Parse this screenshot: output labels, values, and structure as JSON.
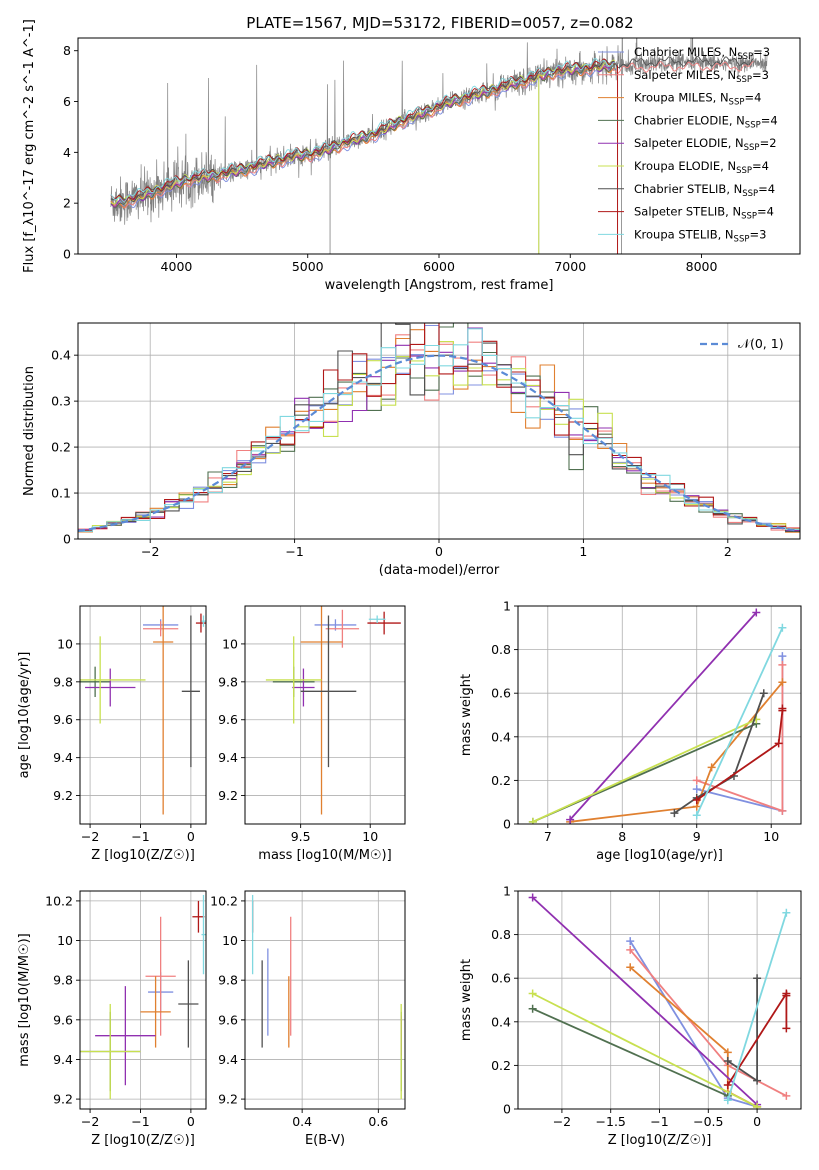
{
  "title": "PLATE=1567, MJD=53172, FIBERID=0057, z=0.082",
  "colors": {
    "chabrier_miles": "#8090e0",
    "salpeter_miles": "#f08080",
    "kroupa_miles": "#e08030",
    "chabrier_elodie": "#507050",
    "salpeter_elodie": "#9030b0",
    "kroupa_elodie": "#c8e050",
    "chabrier_stelib": "#505050",
    "salpeter_stelib": "#b01818",
    "kroupa_stelib": "#80d8e0",
    "data": "#808080",
    "normal": "#5b8bd6"
  },
  "chart_data": [
    {
      "id": "spectrum",
      "type": "line",
      "xlabel": "wavelength [Angstrom, rest frame]",
      "ylabel": "Flux [f_λ10^-17 erg cm^-2 s^-1 A^-1]",
      "xlim": [
        3250,
        8750
      ],
      "ylim": [
        0,
        8.5
      ],
      "xticks": [
        4000,
        5000,
        6000,
        7000,
        8000
      ],
      "yticks": [
        0,
        2,
        4,
        6,
        8
      ],
      "legend_position": "top-right",
      "legend": [
        {
          "label": "Chabrier MILES, N_SSP=3",
          "base": "Chabrier MILES, N",
          "sub": "SSP",
          "suffix": "=3",
          "color_key": "chabrier_miles"
        },
        {
          "label": "Salpeter MILES, N_SSP=3",
          "base": "Salpeter MILES, N",
          "sub": "SSP",
          "suffix": "=3",
          "color_key": "salpeter_miles"
        },
        {
          "label": "Kroupa MILES, N_SSP=4",
          "base": "Kroupa MILES, N",
          "sub": "SSP",
          "suffix": "=4",
          "color_key": "kroupa_miles"
        },
        {
          "label": "Chabrier ELODIE, N_SSP=4",
          "base": "Chabrier ELODIE, N",
          "sub": "SSP",
          "suffix": "=4",
          "color_key": "chabrier_elodie"
        },
        {
          "label": "Salpeter ELODIE, N_SSP=2",
          "base": "Salpeter ELODIE, N",
          "sub": "SSP",
          "suffix": "=2",
          "color_key": "salpeter_elodie"
        },
        {
          "label": "Kroupa ELODIE, N_SSP=4",
          "base": "Kroupa ELODIE, N",
          "sub": "SSP",
          "suffix": "=4",
          "color_key": "kroupa_elodie"
        },
        {
          "label": "Chabrier STELIB, N_SSP=4",
          "base": "Chabrier STELIB, N",
          "sub": "SSP",
          "suffix": "=4",
          "color_key": "chabrier_stelib"
        },
        {
          "label": "Salpeter STELIB, N_SSP=4",
          "base": "Salpeter STELIB, N",
          "sub": "SSP",
          "suffix": "=4",
          "color_key": "salpeter_stelib"
        },
        {
          "label": "Kroupa STELIB, N_SSP=3",
          "base": "Kroupa STELIB, N",
          "sub": "SSP",
          "suffix": "=3",
          "color_key": "kroupa_stelib"
        }
      ],
      "continuum": {
        "x": [
          3500,
          3700,
          3900,
          4100,
          4300,
          4500,
          4700,
          4900,
          5100,
          5300,
          5500,
          5700,
          5900,
          6100,
          6300,
          6500,
          6700,
          6900,
          7100,
          7300,
          7500,
          7700,
          7900,
          8100,
          8300,
          8500
        ],
        "y": [
          2.0,
          2.2,
          2.6,
          2.95,
          3.1,
          3.3,
          3.6,
          3.85,
          4.0,
          4.4,
          4.7,
          5.2,
          5.6,
          6.0,
          6.3,
          6.6,
          6.9,
          7.2,
          7.3,
          7.4,
          7.45,
          7.5,
          7.5,
          7.5,
          7.5,
          7.5
        ]
      }
    },
    {
      "id": "residuals",
      "type": "histogram",
      "xlabel": "(data-model)/error",
      "ylabel": "Normed distribution",
      "xlim": [
        -2.5,
        2.5
      ],
      "ylim": [
        0,
        0.47
      ],
      "xticks": [
        -2,
        -1,
        0,
        1,
        2
      ],
      "yticks": [
        0.0,
        0.1,
        0.2,
        0.3,
        0.4
      ],
      "grid": true,
      "legend_position": "top-right",
      "normal_label": "𝒩(0, 1)",
      "bin_width": 0.1
    },
    {
      "id": "age_vs_Z",
      "type": "errorbar",
      "xlabel": "Z [log10(Z/Z☉)]",
      "ylabel": "age [log10(age/yr)]",
      "xlim": [
        -2.2,
        0.3
      ],
      "ylim": [
        9.05,
        10.2
      ],
      "xticks": [
        -2,
        -1,
        0
      ],
      "yticks": [
        9.2,
        9.4,
        9.6,
        9.8,
        10.0
      ],
      "grid": true,
      "points": [
        {
          "series": "chabrier_miles",
          "x": -0.6,
          "xerr": 0.35,
          "y": 10.1,
          "yerr": 0.03
        },
        {
          "series": "salpeter_miles",
          "x": -0.6,
          "xerr": 0.35,
          "y": 10.08,
          "yerr": 0.04
        },
        {
          "series": "kroupa_miles",
          "x": -0.55,
          "xerr": 0.2,
          "y": 10.01,
          "yerr": 0.91
        },
        {
          "series": "chabrier_elodie",
          "x": -1.9,
          "xerr": 0.3,
          "y": 9.8,
          "yerr": 0.08
        },
        {
          "series": "salpeter_elodie",
          "x": -1.6,
          "xerr": 0.5,
          "y": 9.77,
          "yerr": 0.1
        },
        {
          "series": "kroupa_elodie",
          "x": -1.8,
          "xerr": 0.9,
          "y": 9.81,
          "yerr": 0.23
        },
        {
          "series": "chabrier_stelib",
          "x": 0.0,
          "xerr": 0.18,
          "y": 9.75,
          "yerr": 0.4
        },
        {
          "series": "salpeter_stelib",
          "x": 0.2,
          "xerr": 0.1,
          "y": 10.11,
          "yerr": 0.05
        },
        {
          "series": "kroupa_stelib",
          "x": 0.25,
          "xerr": 0.04,
          "y": 10.12,
          "yerr": 0.03
        }
      ]
    },
    {
      "id": "age_vs_mass",
      "type": "errorbar",
      "xlabel": "mass [log10(M/M☉)]",
      "ylabel": "",
      "xlim": [
        9.1,
        10.25
      ],
      "ylim": [
        9.05,
        10.2
      ],
      "xticks": [
        9.5,
        10.0
      ],
      "yticks": [
        9.2,
        9.4,
        9.6,
        9.8,
        10.0
      ],
      "grid": true,
      "points": [
        {
          "series": "chabrier_miles",
          "x": 9.75,
          "xerr": 0.15,
          "y": 10.1,
          "yerr": 0.03
        },
        {
          "series": "salpeter_miles",
          "x": 9.8,
          "xerr": 0.12,
          "y": 10.08,
          "yerr": 0.1
        },
        {
          "series": "kroupa_miles",
          "x": 9.65,
          "xerr": 0.15,
          "y": 10.01,
          "yerr": 0.91
        },
        {
          "series": "chabrier_elodie",
          "x": 9.45,
          "xerr": 0.15,
          "y": 9.8,
          "yerr": 0.08
        },
        {
          "series": "salpeter_elodie",
          "x": 9.52,
          "xerr": 0.08,
          "y": 9.77,
          "yerr": 0.1
        },
        {
          "series": "kroupa_elodie",
          "x": 9.45,
          "xerr": 0.2,
          "y": 9.81,
          "yerr": 0.23
        },
        {
          "series": "chabrier_stelib",
          "x": 9.7,
          "xerr": 0.2,
          "y": 9.75,
          "yerr": 0.4
        },
        {
          "series": "salpeter_stelib",
          "x": 10.1,
          "xerr": 0.12,
          "y": 10.11,
          "yerr": 0.06
        },
        {
          "series": "kroupa_stelib",
          "x": 10.05,
          "xerr": 0.06,
          "y": 10.13,
          "yerr": 0.02
        }
      ]
    },
    {
      "id": "mass_weight_vs_age",
      "type": "line",
      "xlabel": "age [log10(age/yr)]",
      "ylabel": "mass weight",
      "xlim": [
        6.6,
        10.4
      ],
      "ylim": [
        0,
        1.0
      ],
      "xticks": [
        7,
        8,
        9,
        10
      ],
      "yticks": [
        0.0,
        0.2,
        0.4,
        0.6,
        0.8,
        1.0
      ],
      "grid": true,
      "series": [
        {
          "name": "chabrier_miles",
          "x": [
            9.0,
            10.15,
            10.15
          ],
          "y": [
            0.16,
            0.06,
            0.77
          ]
        },
        {
          "name": "salpeter_miles",
          "x": [
            9.0,
            10.15,
            10.15
          ],
          "y": [
            0.2,
            0.06,
            0.73
          ]
        },
        {
          "name": "kroupa_miles",
          "x": [
            7.3,
            9.0,
            9.2,
            10.15
          ],
          "y": [
            0.01,
            0.08,
            0.26,
            0.65
          ]
        },
        {
          "name": "chabrier_elodie",
          "x": [
            6.8,
            9.8
          ],
          "y": [
            0.01,
            0.46
          ]
        },
        {
          "name": "salpeter_elodie",
          "x": [
            7.3,
            9.8
          ],
          "y": [
            0.02,
            0.97
          ]
        },
        {
          "name": "kroupa_elodie",
          "x": [
            6.8,
            9.8
          ],
          "y": [
            0.01,
            0.48
          ]
        },
        {
          "name": "chabrier_stelib",
          "x": [
            8.7,
            9.0,
            9.5,
            9.9
          ],
          "y": [
            0.05,
            0.12,
            0.22,
            0.6
          ]
        },
        {
          "name": "salpeter_stelib",
          "x": [
            9.0,
            10.1,
            10.15,
            10.15
          ],
          "y": [
            0.11,
            0.37,
            0.52,
            0.53
          ]
        },
        {
          "name": "kroupa_stelib",
          "x": [
            9.0,
            10.15
          ],
          "y": [
            0.04,
            0.9
          ]
        }
      ]
    },
    {
      "id": "mass_vs_Z",
      "type": "errorbar",
      "xlabel": "Z [log10(Z/Z☉)]",
      "ylabel": "mass [log10(M/M☉)]",
      "xlim": [
        -2.2,
        0.3
      ],
      "ylim": [
        9.15,
        10.25
      ],
      "xticks": [
        -2,
        -1,
        0
      ],
      "yticks": [
        9.2,
        9.4,
        9.6,
        9.8,
        10.0,
        10.2
      ],
      "grid": true,
      "points": [
        {
          "series": "chabrier_miles",
          "x": -0.6,
          "xerr": 0.25,
          "y": 9.74,
          "yerr": 0.1
        },
        {
          "series": "salpeter_miles",
          "x": -0.6,
          "xerr": 0.3,
          "y": 9.82,
          "yerr": 0.3
        },
        {
          "series": "kroupa_miles",
          "x": -0.7,
          "xerr": 0.3,
          "y": 9.64,
          "yerr": 0.18
        },
        {
          "series": "chabrier_elodie",
          "x": -1.6,
          "xerr": 0.6,
          "y": 9.44,
          "yerr": 0.2
        },
        {
          "series": "salpeter_elodie",
          "x": -1.3,
          "xerr": 0.6,
          "y": 9.52,
          "yerr": 0.25
        },
        {
          "series": "kroupa_elodie",
          "x": -1.6,
          "xerr": 0.6,
          "y": 9.44,
          "yerr": 0.24
        },
        {
          "series": "chabrier_stelib",
          "x": -0.05,
          "xerr": 0.2,
          "y": 9.68,
          "yerr": 0.22
        },
        {
          "series": "salpeter_stelib",
          "x": 0.15,
          "xerr": 0.12,
          "y": 10.12,
          "yerr": 0.08
        },
        {
          "series": "kroupa_stelib",
          "x": 0.25,
          "xerr": 0.04,
          "y": 10.03,
          "yerr": 0.2
        }
      ]
    },
    {
      "id": "mass_vs_ebv",
      "type": "errorbar",
      "xlabel": "E(B-V)",
      "ylabel": "",
      "xlim": [
        0.25,
        0.67
      ],
      "ylim": [
        9.15,
        10.25
      ],
      "xticks": [
        0.4,
        0.6
      ],
      "yticks": [
        9.2,
        9.4,
        9.6,
        9.8,
        10.0,
        10.2
      ],
      "grid": true,
      "points": [
        {
          "series": "chabrier_miles",
          "x": 0.31,
          "y": 9.74,
          "yerr": 0.22
        },
        {
          "series": "salpeter_miles",
          "x": 0.37,
          "y": 9.82,
          "yerr": 0.3
        },
        {
          "series": "kroupa_miles",
          "x": 0.365,
          "y": 9.64,
          "yerr": 0.18
        },
        {
          "series": "chabrier_elodie",
          "x": 0.66,
          "y": 9.44,
          "yerr": 0.2
        },
        {
          "series": "salpeter_elodie",
          "x": 0.66,
          "y": 9.52,
          "yerr": 0.1
        },
        {
          "series": "kroupa_elodie",
          "x": 0.66,
          "y": 9.44,
          "yerr": 0.24
        },
        {
          "series": "chabrier_stelib",
          "x": 0.295,
          "y": 9.68,
          "yerr": 0.22
        },
        {
          "series": "salpeter_stelib",
          "x": 0.27,
          "y": 10.12,
          "yerr": 0.08
        },
        {
          "series": "kroupa_stelib",
          "x": 0.27,
          "y": 10.03,
          "yerr": 0.2
        }
      ]
    },
    {
      "id": "mass_weight_vs_Z",
      "type": "line",
      "xlabel": "Z [log10(Z/Z☉)]",
      "ylabel": "mass weight",
      "xlim": [
        -2.45,
        0.45
      ],
      "ylim": [
        0,
        1.0
      ],
      "xticks": [
        -2.0,
        -1.5,
        -1.0,
        -0.5,
        0.0
      ],
      "yticks": [
        0.0,
        0.2,
        0.4,
        0.6,
        0.8,
        1.0
      ],
      "grid": true,
      "series": [
        {
          "name": "chabrier_miles",
          "x": [
            -1.3,
            -0.3,
            0.0
          ],
          "y": [
            0.77,
            0.05,
            0.01
          ]
        },
        {
          "name": "salpeter_miles",
          "x": [
            -1.3,
            -0.3,
            0.3
          ],
          "y": [
            0.73,
            0.2,
            0.06
          ]
        },
        {
          "name": "kroupa_miles",
          "x": [
            -1.3,
            -0.3,
            -0.3,
            0.0
          ],
          "y": [
            0.65,
            0.26,
            0.08,
            0.01
          ]
        },
        {
          "name": "chabrier_elodie",
          "x": [
            -2.3,
            -0.3
          ],
          "y": [
            0.46,
            0.06
          ]
        },
        {
          "name": "salpeter_elodie",
          "x": [
            -2.3,
            0.0
          ],
          "y": [
            0.97,
            0.02
          ]
        },
        {
          "name": "kroupa_elodie",
          "x": [
            -2.3,
            0.0
          ],
          "y": [
            0.53,
            0.01
          ]
        },
        {
          "name": "chabrier_stelib",
          "x": [
            -0.3,
            0.0,
            0.0
          ],
          "y": [
            0.22,
            0.13,
            0.6
          ]
        },
        {
          "name": "salpeter_stelib",
          "x": [
            -0.3,
            0.3,
            0.3,
            0.3
          ],
          "y": [
            0.11,
            0.53,
            0.52,
            0.37
          ]
        },
        {
          "name": "kroupa_stelib",
          "x": [
            -0.3,
            0.3
          ],
          "y": [
            0.04,
            0.9
          ]
        }
      ]
    }
  ]
}
